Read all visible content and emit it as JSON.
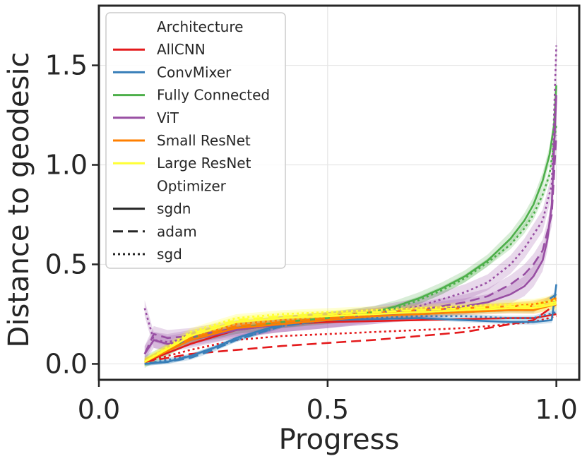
{
  "chart_data": {
    "type": "line",
    "title": "",
    "xlabel": "Progress",
    "ylabel": "Distance to geodesic",
    "xlim": [
      0.0,
      1.05
    ],
    "ylim": [
      -0.08,
      1.8
    ],
    "xticks": [
      0.0,
      0.5,
      1.0
    ],
    "xtick_labels": [
      "0.0",
      "0.5",
      "1.0"
    ],
    "yticks": [
      0.0,
      0.5,
      1.0,
      1.5
    ],
    "ytick_labels": [
      "0.0",
      "0.5",
      "1.0",
      "1.5"
    ],
    "grid": true,
    "legend": {
      "placement": "top-left",
      "architecture_title": "Architecture",
      "optimizer_title": "Optimizer",
      "architectures": [
        {
          "name": "AllCNN",
          "color": "#e41a1c"
        },
        {
          "name": "ConvMixer",
          "color": "#377eb8"
        },
        {
          "name": "Fully Connected",
          "color": "#4daf4a"
        },
        {
          "name": "ViT",
          "color": "#984ea3"
        },
        {
          "name": "Small ResNet",
          "color": "#ff7f00"
        },
        {
          "name": "Large ResNet",
          "color": "#ffff33"
        }
      ],
      "optimizers": [
        {
          "name": "sgdn",
          "dash": "solid"
        },
        {
          "name": "adam",
          "dash": "dashed"
        },
        {
          "name": "sgd",
          "dash": "dotted"
        }
      ]
    },
    "series": [
      {
        "architecture": "AllCNN",
        "optimizer": "sgdn",
        "color": "#e41a1c",
        "x": [
          0.1,
          0.2,
          0.3,
          0.4,
          0.5,
          0.6,
          0.7,
          0.8,
          0.9,
          0.95,
          1.0
        ],
        "y": [
          0.01,
          0.1,
          0.17,
          0.2,
          0.21,
          0.215,
          0.22,
          0.225,
          0.23,
          0.23,
          0.25
        ],
        "band": 0.0
      },
      {
        "architecture": "AllCNN",
        "optimizer": "adam",
        "color": "#e41a1c",
        "x": [
          0.1,
          0.2,
          0.3,
          0.4,
          0.5,
          0.6,
          0.7,
          0.8,
          0.9,
          0.95,
          1.0
        ],
        "y": [
          0.01,
          0.05,
          0.07,
          0.09,
          0.105,
          0.12,
          0.14,
          0.16,
          0.2,
          0.22,
          0.3
        ],
        "band": 0.0
      },
      {
        "architecture": "AllCNN",
        "optimizer": "sgd",
        "color": "#e41a1c",
        "x": [
          0.1,
          0.2,
          0.3,
          0.4,
          0.5,
          0.6,
          0.7,
          0.8,
          0.9,
          0.95,
          1.0
        ],
        "y": [
          0.01,
          0.07,
          0.12,
          0.14,
          0.15,
          0.16,
          0.17,
          0.18,
          0.2,
          0.21,
          0.24
        ],
        "band": 0.0
      },
      {
        "architecture": "ConvMixer",
        "optimizer": "sgdn",
        "color": "#377eb8",
        "x": [
          0.1,
          0.15,
          0.2,
          0.25,
          0.3,
          0.4,
          0.5,
          0.6,
          0.7,
          0.8,
          0.9,
          0.95,
          0.99,
          1.0
        ],
        "y": [
          0.0,
          0.01,
          0.04,
          0.08,
          0.13,
          0.2,
          0.22,
          0.225,
          0.23,
          0.22,
          0.21,
          0.21,
          0.22,
          0.4
        ],
        "band": 0.01
      },
      {
        "architecture": "ConvMixer",
        "optimizer": "adam",
        "color": "#377eb8",
        "x": [
          0.1,
          0.15,
          0.2,
          0.25,
          0.3,
          0.4,
          0.5,
          0.6,
          0.7,
          0.8,
          0.9,
          0.95,
          1.0
        ],
        "y": [
          0.0,
          0.01,
          0.03,
          0.07,
          0.12,
          0.19,
          0.22,
          0.24,
          0.25,
          0.26,
          0.27,
          0.27,
          0.35
        ],
        "band": 0.01
      },
      {
        "architecture": "ConvMixer",
        "optimizer": "sgd",
        "color": "#377eb8",
        "x": [
          0.1,
          0.2,
          0.3,
          0.4,
          0.5,
          0.6,
          0.7,
          0.8,
          0.9,
          0.95,
          1.0
        ],
        "y": [
          0.0,
          0.04,
          0.12,
          0.19,
          0.22,
          0.23,
          0.24,
          0.24,
          0.23,
          0.23,
          0.26
        ],
        "band": 0.01
      },
      {
        "architecture": "Fully Connected",
        "optimizer": "sgdn",
        "color": "#4daf4a",
        "x": [
          0.1,
          0.2,
          0.3,
          0.4,
          0.5,
          0.6,
          0.65,
          0.7,
          0.75,
          0.8,
          0.85,
          0.9,
          0.93,
          0.95,
          0.97,
          0.985,
          0.995,
          1.0
        ],
        "y": [
          0.01,
          0.13,
          0.18,
          0.21,
          0.23,
          0.26,
          0.29,
          0.33,
          0.38,
          0.44,
          0.52,
          0.63,
          0.72,
          0.8,
          0.92,
          1.05,
          1.2,
          1.4
        ],
        "band": 0.03
      },
      {
        "architecture": "Fully Connected",
        "optimizer": "sgd",
        "color": "#4daf4a",
        "x": [
          0.1,
          0.2,
          0.3,
          0.4,
          0.5,
          0.6,
          0.65,
          0.7,
          0.75,
          0.8,
          0.85,
          0.9,
          0.93,
          0.95,
          0.97,
          0.985,
          1.0
        ],
        "y": [
          0.01,
          0.12,
          0.17,
          0.2,
          0.22,
          0.25,
          0.28,
          0.32,
          0.37,
          0.43,
          0.51,
          0.6,
          0.68,
          0.75,
          0.85,
          0.95,
          1.2
        ],
        "band": 0.02
      },
      {
        "architecture": "ViT",
        "optimizer": "sgdn",
        "color": "#984ea3",
        "x": [
          0.1,
          0.12,
          0.15,
          0.2,
          0.3,
          0.4,
          0.5,
          0.6,
          0.7,
          0.8,
          0.85,
          0.9,
          0.93,
          0.95,
          0.97,
          0.98,
          0.99,
          1.0
        ],
        "y": [
          0.05,
          0.12,
          0.1,
          0.12,
          0.17,
          0.2,
          0.22,
          0.24,
          0.26,
          0.29,
          0.31,
          0.35,
          0.39,
          0.44,
          0.52,
          0.62,
          0.8,
          1.35
        ],
        "band": 0.04
      },
      {
        "architecture": "ViT",
        "optimizer": "adam",
        "color": "#984ea3",
        "x": [
          0.1,
          0.12,
          0.15,
          0.2,
          0.3,
          0.4,
          0.5,
          0.6,
          0.7,
          0.8,
          0.85,
          0.9,
          0.93,
          0.95,
          0.97,
          0.99,
          1.0
        ],
        "y": [
          0.05,
          0.15,
          0.13,
          0.14,
          0.18,
          0.2,
          0.22,
          0.24,
          0.27,
          0.31,
          0.34,
          0.4,
          0.45,
          0.5,
          0.57,
          0.75,
          1.15
        ],
        "band": 0.04
      },
      {
        "architecture": "ViT",
        "optimizer": "sgd",
        "color": "#984ea3",
        "x": [
          0.1,
          0.11,
          0.12,
          0.15,
          0.2,
          0.3,
          0.4,
          0.5,
          0.6,
          0.7,
          0.8,
          0.85,
          0.9,
          0.93,
          0.95,
          0.97,
          0.99,
          1.0
        ],
        "y": [
          0.28,
          0.2,
          0.12,
          0.11,
          0.13,
          0.17,
          0.2,
          0.22,
          0.25,
          0.29,
          0.36,
          0.41,
          0.5,
          0.58,
          0.65,
          0.72,
          0.9,
          1.6
        ],
        "band": 0.04
      },
      {
        "architecture": "Small ResNet",
        "optimizer": "sgdn",
        "color": "#ff7f00",
        "x": [
          0.1,
          0.2,
          0.3,
          0.4,
          0.5,
          0.6,
          0.7,
          0.8,
          0.9,
          0.95,
          1.0
        ],
        "y": [
          0.01,
          0.12,
          0.18,
          0.2,
          0.22,
          0.24,
          0.25,
          0.26,
          0.27,
          0.27,
          0.3
        ],
        "band": 0.015
      },
      {
        "architecture": "Small ResNet",
        "optimizer": "adam",
        "color": "#ff7f00",
        "x": [
          0.1,
          0.2,
          0.3,
          0.4,
          0.5,
          0.6,
          0.7,
          0.8,
          0.9,
          0.95,
          1.0
        ],
        "y": [
          0.01,
          0.13,
          0.19,
          0.21,
          0.23,
          0.25,
          0.27,
          0.28,
          0.29,
          0.29,
          0.33
        ],
        "band": 0.015
      },
      {
        "architecture": "Small ResNet",
        "optimizer": "sgd",
        "color": "#ff7f00",
        "x": [
          0.1,
          0.2,
          0.3,
          0.4,
          0.5,
          0.6,
          0.7,
          0.8,
          0.9,
          0.95,
          1.0
        ],
        "y": [
          0.01,
          0.14,
          0.2,
          0.22,
          0.24,
          0.26,
          0.27,
          0.28,
          0.29,
          0.3,
          0.32
        ],
        "band": 0.015
      },
      {
        "architecture": "Large ResNet",
        "optimizer": "sgdn",
        "color": "#ffff33",
        "x": [
          0.1,
          0.2,
          0.3,
          0.4,
          0.5,
          0.6,
          0.7,
          0.8,
          0.9,
          0.95,
          1.0
        ],
        "y": [
          0.01,
          0.14,
          0.21,
          0.23,
          0.24,
          0.25,
          0.26,
          0.27,
          0.28,
          0.28,
          0.3
        ],
        "band": 0.02
      },
      {
        "architecture": "Large ResNet",
        "optimizer": "adam",
        "color": "#ffff33",
        "x": [
          0.1,
          0.2,
          0.3,
          0.4,
          0.5,
          0.6,
          0.7,
          0.8,
          0.9,
          0.95,
          1.0
        ],
        "y": [
          0.01,
          0.15,
          0.22,
          0.24,
          0.25,
          0.26,
          0.27,
          0.28,
          0.29,
          0.29,
          0.31
        ],
        "band": 0.02
      },
      {
        "architecture": "Large ResNet",
        "optimizer": "sgd",
        "color": "#ffff33",
        "x": [
          0.1,
          0.2,
          0.3,
          0.4,
          0.5,
          0.6,
          0.7,
          0.8,
          0.9,
          0.95,
          1.0
        ],
        "y": [
          0.01,
          0.16,
          0.23,
          0.25,
          0.26,
          0.27,
          0.28,
          0.29,
          0.3,
          0.3,
          0.32
        ],
        "band": 0.02
      }
    ]
  }
}
